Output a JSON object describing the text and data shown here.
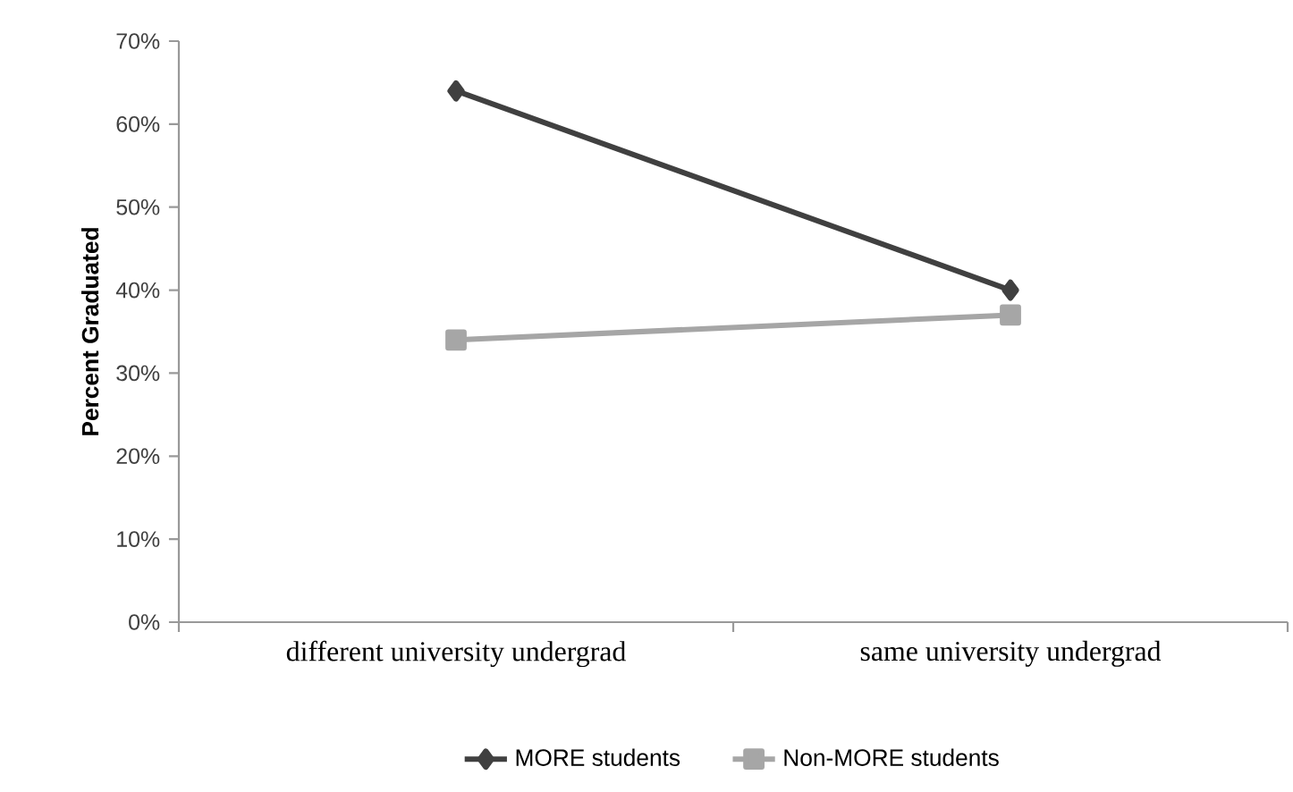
{
  "chart_data": {
    "type": "line",
    "ylabel": "Percent Graduated",
    "categories": [
      "different university undergrad",
      "same university undergrad"
    ],
    "series": [
      {
        "name": "MORE students",
        "color": "#404040",
        "marker": "diamond",
        "values": [
          64,
          40
        ]
      },
      {
        "name": "Non-MORE students",
        "color": "#a6a6a6",
        "marker": "square",
        "values": [
          34,
          37
        ]
      }
    ],
    "ylim": [
      0,
      70
    ],
    "yticks": [
      {
        "value": 0,
        "label": "0%"
      },
      {
        "value": 10,
        "label": "10%"
      },
      {
        "value": 20,
        "label": "20%"
      },
      {
        "value": 30,
        "label": "30%"
      },
      {
        "value": 40,
        "label": "40%"
      },
      {
        "value": 50,
        "label": "50%"
      },
      {
        "value": 60,
        "label": "60%"
      },
      {
        "value": 70,
        "label": "70%"
      }
    ],
    "grid": false,
    "legend": "bottom"
  }
}
